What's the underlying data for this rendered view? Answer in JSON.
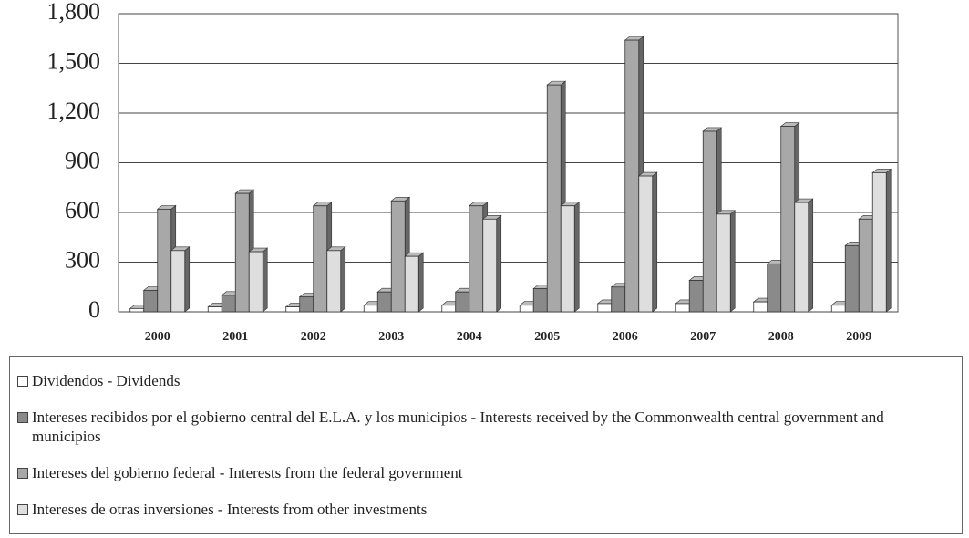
{
  "chart_data": {
    "type": "bar",
    "categories": [
      "2000",
      "2001",
      "2002",
      "2003",
      "2004",
      "2005",
      "2006",
      "2007",
      "2008",
      "2009"
    ],
    "series": [
      {
        "name": "Dividendos - Dividends",
        "color": "#ffffff",
        "values": [
          20,
          30,
          30,
          40,
          40,
          40,
          50,
          50,
          60,
          40
        ]
      },
      {
        "name": "Intereses recibidos por el gobierno central del E.L.A. y los municipios - Interests received by the Commonwealth central government and municipios",
        "color": "#8a8a8a",
        "values": [
          130,
          100,
          90,
          120,
          120,
          140,
          150,
          190,
          290,
          400
        ]
      },
      {
        "name": "Intereses del gobierno federal - Interests from the federal government",
        "color": "#a8a8a8",
        "values": [
          620,
          715,
          640,
          670,
          640,
          1370,
          1640,
          1090,
          1120,
          560
        ]
      },
      {
        "name": "Intereses de otras inversiones - Interests from other investments",
        "color": "#dedede",
        "values": [
          370,
          363,
          370,
          335,
          560,
          640,
          820,
          590,
          660,
          840
        ]
      }
    ],
    "ylim": [
      0,
      1800
    ],
    "yticks": [
      0,
      300,
      600,
      900,
      {
        "value": 1200,
        "label": "1,200"
      },
      {
        "value": 1500,
        "label": "1,500"
      },
      {
        "value": 1800,
        "label": "1,800"
      }
    ],
    "grid": true
  }
}
